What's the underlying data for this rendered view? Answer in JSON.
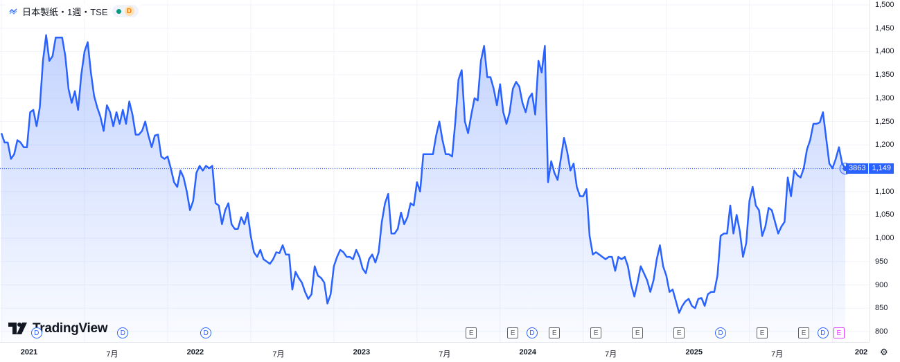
{
  "legend": {
    "symbol_title": "日本製紙・1週・TSE",
    "status_marker": "D"
  },
  "brand": {
    "name": "TradingView"
  },
  "colors": {
    "line": "#2962ff",
    "fill_top": "rgba(41,98,255,0.28)",
    "fill_bottom": "rgba(41,98,255,0.02)",
    "grid": "#f0f3fa"
  },
  "last_price": {
    "volume_label": "3863",
    "price_label": "1,149",
    "value": 1149
  },
  "icons": {
    "logo": "line-chart-icon",
    "settings": "gear-icon"
  },
  "chart_data": {
    "type": "area",
    "ylim": [
      795,
      1500
    ],
    "yticks": [
      800,
      850,
      900,
      950,
      1000,
      1050,
      1100,
      1150,
      1200,
      1250,
      1300,
      1350,
      1400,
      1450,
      1500
    ],
    "ytick_labels": [
      "800",
      "850",
      "900",
      "950",
      "1,000",
      "1,050",
      "1,100",
      "1,150",
      "1,200",
      "1,250",
      "1,300",
      "1,350",
      "1,400",
      "1,450",
      "1,500"
    ],
    "xticks": [
      {
        "label": "2021",
        "x": 0,
        "bold": true
      },
      {
        "label": "7月",
        "x": 26,
        "bold": false
      },
      {
        "label": "2022",
        "x": 52,
        "bold": true
      },
      {
        "label": "7月",
        "x": 78,
        "bold": false
      },
      {
        "label": "2023",
        "x": 104,
        "bold": true
      },
      {
        "label": "7月",
        "x": 130,
        "bold": false
      },
      {
        "label": "2024",
        "x": 156,
        "bold": true
      },
      {
        "label": "7月",
        "x": 182,
        "bold": false
      },
      {
        "label": "2025",
        "x": 208,
        "bold": true
      },
      {
        "label": "7月",
        "x": 234,
        "bold": false
      },
      {
        "label": "202",
        "x": 260,
        "bold": true
      }
    ],
    "events": [
      {
        "type": "D",
        "x": 11
      },
      {
        "type": "D",
        "x": 38
      },
      {
        "type": "D",
        "x": 64
      },
      {
        "type": "E",
        "x": 147
      },
      {
        "type": "E",
        "x": 160
      },
      {
        "type": "D",
        "x": 166
      },
      {
        "type": "E",
        "x": 173
      },
      {
        "type": "E",
        "x": 186
      },
      {
        "type": "E",
        "x": 199
      },
      {
        "type": "E",
        "x": 212
      },
      {
        "type": "D",
        "x": 225
      },
      {
        "type": "E",
        "x": 238
      },
      {
        "type": "E",
        "x": 251
      },
      {
        "type": "D",
        "x": 257
      },
      {
        "type": "E",
        "x": 262,
        "pending": true
      }
    ],
    "series": [
      {
        "values": [
          1225,
          1205,
          1205,
          1170,
          1180,
          1210,
          1205,
          1195,
          1195,
          1270,
          1275,
          1240,
          1280,
          1380,
          1435,
          1380,
          1390,
          1430,
          1430,
          1430,
          1390,
          1320,
          1290,
          1315,
          1275,
          1350,
          1400,
          1420,
          1355,
          1305,
          1280,
          1260,
          1230,
          1285,
          1270,
          1240,
          1270,
          1245,
          1275,
          1245,
          1293,
          1265,
          1222,
          1222,
          1230,
          1250,
          1220,
          1195,
          1220,
          1222,
          1175,
          1170,
          1175,
          1150,
          1120,
          1110,
          1145,
          1130,
          1100,
          1060,
          1080,
          1140,
          1155,
          1145,
          1155,
          1150,
          1155,
          1075,
          1070,
          1030,
          1060,
          1075,
          1030,
          1020,
          1020,
          1045,
          1030,
          1055,
          1005,
          970,
          960,
          975,
          955,
          950,
          945,
          955,
          970,
          968,
          985,
          965,
          965,
          890,
          928,
          915,
          905,
          885,
          870,
          880,
          940,
          920,
          915,
          905,
          860,
          880,
          940,
          960,
          975,
          970,
          960,
          960,
          955,
          975,
          960,
          935,
          925,
          955,
          965,
          948,
          970,
          1035,
          1075,
          1095,
          1010,
          1010,
          1020,
          1055,
          1030,
          1045,
          1075,
          1070,
          1120,
          1100,
          1180,
          1180,
          1180,
          1180,
          1220,
          1250,
          1210,
          1180,
          1180,
          1175,
          1250,
          1340,
          1360,
          1250,
          1225,
          1265,
          1300,
          1295,
          1380,
          1412,
          1345,
          1345,
          1320,
          1285,
          1330,
          1270,
          1245,
          1270,
          1320,
          1335,
          1325,
          1290,
          1270,
          1300,
          1310,
          1265,
          1380,
          1355,
          1412,
          1120,
          1165,
          1140,
          1125,
          1170,
          1215,
          1185,
          1145,
          1160,
          1110,
          1090,
          1090,
          1105,
          1005,
          965,
          970,
          965,
          960,
          955,
          960,
          960,
          930,
          960,
          955,
          960,
          940,
          900,
          875,
          905,
          940,
          925,
          910,
          885,
          910,
          955,
          985,
          940,
          920,
          885,
          890,
          865,
          840,
          855,
          865,
          870,
          855,
          850,
          870,
          872,
          855,
          880,
          885,
          885,
          920,
          1005,
          1010,
          1010,
          1070,
          1010,
          1050,
          1015,
          960,
          990,
          1080,
          1110,
          1070,
          1060,
          1005,
          1025,
          1065,
          1060,
          1035,
          1010,
          1025,
          1035,
          1130,
          1090,
          1145,
          1135,
          1130,
          1150,
          1190,
          1210,
          1245,
          1245,
          1248,
          1270,
          1215,
          1160,
          1150,
          1170,
          1195,
          1160,
          1149
        ]
      }
    ]
  }
}
